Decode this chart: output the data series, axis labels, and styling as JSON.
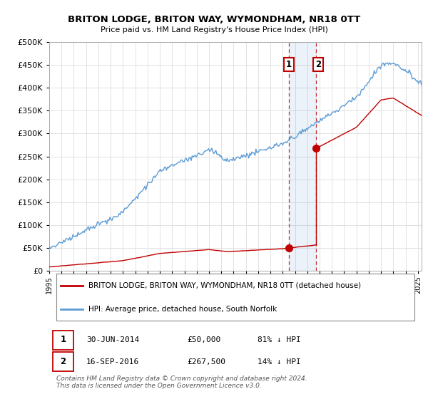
{
  "title": "BRITON LODGE, BRITON WAY, WYMONDHAM, NR18 0TT",
  "subtitle": "Price paid vs. HM Land Registry's House Price Index (HPI)",
  "ytick_values": [
    0,
    50000,
    100000,
    150000,
    200000,
    250000,
    300000,
    350000,
    400000,
    450000,
    500000
  ],
  "ylim": [
    0,
    500000
  ],
  "xlim_start": 1995.0,
  "xlim_end": 2025.3,
  "hpi_color": "#5b9bd5",
  "price_color": "#c00000",
  "sale1_date": 2014.5,
  "sale1_price": 50000,
  "sale2_date": 2016.72,
  "sale2_price": 267500,
  "legend_property": "BRITON LODGE, BRITON WAY, WYMONDHAM, NR18 0TT (detached house)",
  "legend_hpi": "HPI: Average price, detached house, South Norfolk",
  "footnote": "Contains HM Land Registry data © Crown copyright and database right 2024.\nThis data is licensed under the Open Government Licence v3.0.",
  "background_color": "#ffffff",
  "grid_color": "#dddddd"
}
